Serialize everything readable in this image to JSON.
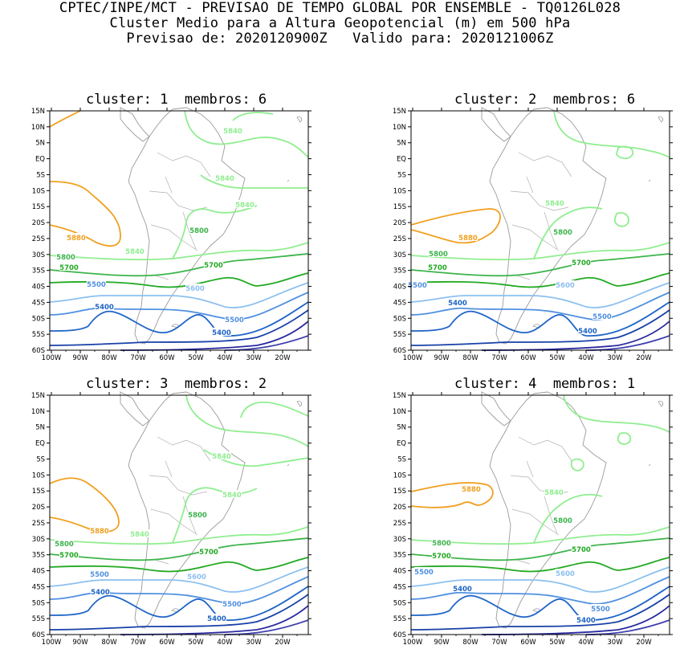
{
  "header": {
    "line1": "CPTEC/INPE/MCT - PREVISAO DE TEMPO GLOBAL POR ENSEMBLE - TQ0126L028",
    "line2": "Cluster Medio para a Altura Geopotencial (m) em 500 hPa",
    "line3": "Previsao de: 2020120900Z   Valido para: 2020121006Z"
  },
  "axes": {
    "lat_labels": [
      "15N",
      "10N",
      "5N",
      "EQ",
      "5S",
      "10S",
      "15S",
      "20S",
      "25S",
      "30S",
      "35S",
      "40S",
      "45S",
      "50S",
      "55S",
      "60S"
    ],
    "lon_labels": [
      "100W",
      "90W",
      "80W",
      "70W",
      "60W",
      "50W",
      "40W",
      "30W",
      "20W"
    ]
  },
  "contour_colors": {
    "5880": "#f0a020",
    "5840": "#90ee90",
    "5800": "#3cb44b",
    "5700": "#22aa22",
    "5600": "#8cc0f0",
    "5500": "#5090e0",
    "5400": "#1e64c8",
    "5300": "#1840a8",
    "5200": "#2a2aa0",
    "5100": "#4040b0"
  },
  "panels": [
    {
      "title": "cluster: 1  membros: 6",
      "labels": [
        {
          "text": "5880",
          "color": "5880"
        },
        {
          "text": "5840",
          "color": "5840"
        },
        {
          "text": "5840",
          "color": "5840"
        },
        {
          "text": "5840",
          "color": "5840"
        },
        {
          "text": "5840",
          "color": "5840"
        },
        {
          "text": "5800",
          "color": "5800"
        },
        {
          "text": "5800",
          "color": "5800"
        },
        {
          "text": "5700",
          "color": "5700"
        },
        {
          "text": "5700",
          "color": "5700"
        },
        {
          "text": "5600",
          "color": "5600"
        },
        {
          "text": "5500",
          "color": "5500"
        },
        {
          "text": "5500",
          "color": "5500"
        },
        {
          "text": "5400",
          "color": "5400"
        },
        {
          "text": "5400",
          "color": "5400"
        }
      ]
    },
    {
      "title": "cluster: 2  membros: 6",
      "labels": [
        {
          "text": "5880",
          "color": "5880"
        },
        {
          "text": "5840",
          "color": "5840"
        },
        {
          "text": "5800",
          "color": "5800"
        },
        {
          "text": "5800",
          "color": "5800"
        },
        {
          "text": "5700",
          "color": "5700"
        },
        {
          "text": "5700",
          "color": "5700"
        },
        {
          "text": "5600",
          "color": "5600"
        },
        {
          "text": "5500",
          "color": "5500"
        },
        {
          "text": "5500",
          "color": "5500"
        },
        {
          "text": "5400",
          "color": "5400"
        },
        {
          "text": "5400",
          "color": "5400"
        }
      ]
    },
    {
      "title": "cluster: 3  membros: 2",
      "labels": [
        {
          "text": "5880",
          "color": "5880"
        },
        {
          "text": "5840",
          "color": "5840"
        },
        {
          "text": "5840",
          "color": "5840"
        },
        {
          "text": "5840",
          "color": "5840"
        },
        {
          "text": "5800",
          "color": "5800"
        },
        {
          "text": "5800",
          "color": "5800"
        },
        {
          "text": "5700",
          "color": "5700"
        },
        {
          "text": "5700",
          "color": "5700"
        },
        {
          "text": "5600",
          "color": "5600"
        },
        {
          "text": "5500",
          "color": "5500"
        },
        {
          "text": "5500",
          "color": "5500"
        },
        {
          "text": "5400",
          "color": "5400"
        },
        {
          "text": "5400",
          "color": "5400"
        }
      ]
    },
    {
      "title": "cluster: 4  membros: 1",
      "labels": [
        {
          "text": "5880",
          "color": "5880"
        },
        {
          "text": "5840",
          "color": "5840"
        },
        {
          "text": "5800",
          "color": "5800"
        },
        {
          "text": "5800",
          "color": "5800"
        },
        {
          "text": "5700",
          "color": "5700"
        },
        {
          "text": "5700",
          "color": "5700"
        },
        {
          "text": "5600",
          "color": "5600"
        },
        {
          "text": "5500",
          "color": "5500"
        },
        {
          "text": "5500",
          "color": "5500"
        },
        {
          "text": "5400",
          "color": "5400"
        },
        {
          "text": "5400",
          "color": "5400"
        }
      ]
    }
  ]
}
